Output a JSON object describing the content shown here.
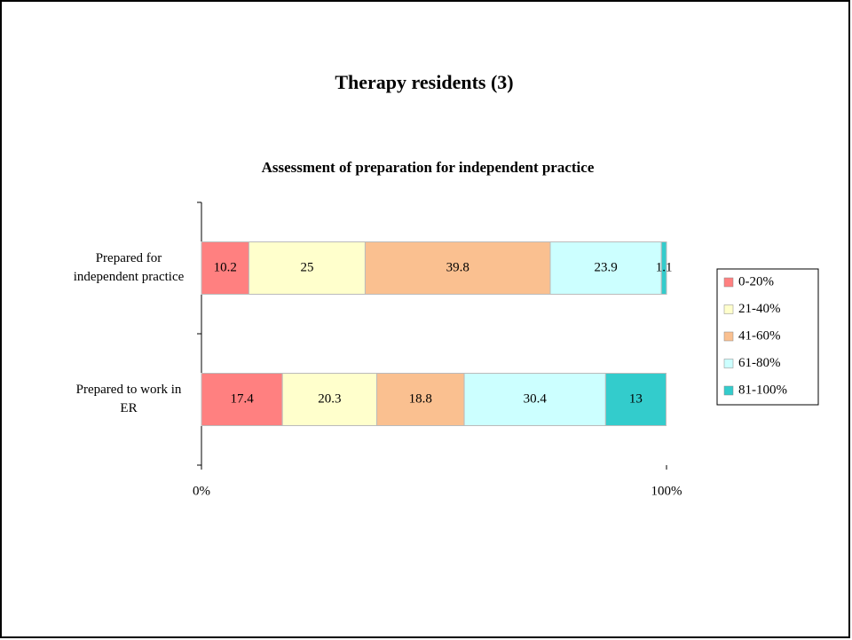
{
  "slide": {
    "title": "Therapy residents (3)"
  },
  "chart_data": {
    "type": "stacked_barh",
    "title": "Assessment of preparation for independent practice",
    "categories": [
      "Prepared for independent practice",
      "Prepared to work in ER"
    ],
    "series": [
      {
        "name": "0-20%",
        "color": "#ff8080",
        "values": [
          10.2,
          17.4
        ]
      },
      {
        "name": "21-40%",
        "color": "#ffffcc",
        "values": [
          25,
          20.3
        ]
      },
      {
        "name": "41-60%",
        "color": "#fac090",
        "values": [
          39.8,
          18.8
        ]
      },
      {
        "name": "61-80%",
        "color": "#ccffff",
        "values": [
          23.9,
          30.4
        ]
      },
      {
        "name": "81-100%",
        "color": "#33cccc",
        "values": [
          1.1,
          13
        ]
      }
    ],
    "xlim": [
      0,
      100
    ],
    "xticks": [
      {
        "value": 0,
        "label": "0%"
      },
      {
        "value": 100,
        "label": "100%"
      }
    ],
    "legend": "right"
  }
}
